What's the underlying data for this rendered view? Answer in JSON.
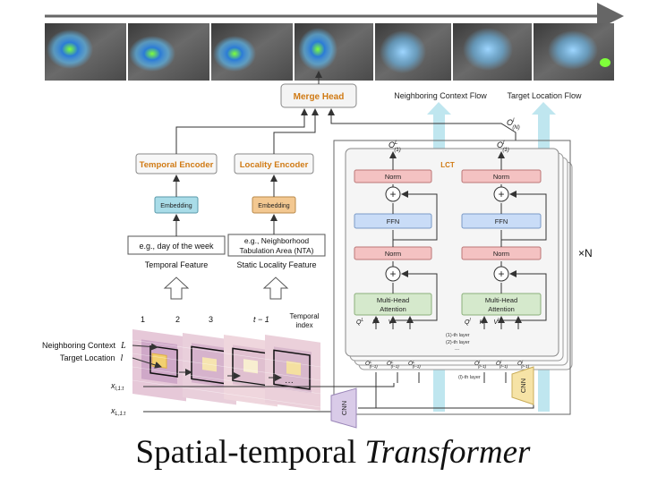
{
  "timeline": {
    "frames": [
      "radar-frame-1",
      "radar-frame-2",
      "radar-frame-3",
      "radar-frame-4",
      "radar-frame-5",
      "radar-frame-6",
      "radar-frame-7"
    ]
  },
  "merge_head": {
    "label": "Merge Head"
  },
  "flows": {
    "neighboring": "Neighboring Context Flow",
    "target": "Target Location Flow"
  },
  "temporal_branch": {
    "encoder": "Temporal Encoder",
    "embedding": "Embedding",
    "feature_example": "e.g., day of the week",
    "feature_label": "Temporal Feature"
  },
  "locality_branch": {
    "encoder": "Locality Encoder",
    "embedding": "Embedding",
    "feature_example_line1": "e.g., Neighborhood",
    "feature_example_line2": "Tabulation Area (NTA)",
    "feature_label": "Static Locality Feature"
  },
  "lct": {
    "label": "LCT",
    "norm": "Norm",
    "ffn": "FFN",
    "mha_line1": "Multi-Head",
    "mha_line2": "Attention",
    "repeat": "×N",
    "out_left": "O",
    "out_left_sup": "L",
    "out_left_sub": "(1)",
    "out_right": "O",
    "out_right_sup": "l",
    "out_right_sub": "(1)",
    "top_out": "O",
    "top_out_sup": "l",
    "top_out_sub": "(N)",
    "q_left": "Q",
    "k_left": "K",
    "v_left": "V",
    "sup_left": "L",
    "q_right": "Q",
    "k_right": "K",
    "v_right": "V",
    "sup_right": "l",
    "layer1": "(1)-th layer",
    "layer2": "(2)-th layer",
    "layer_dots": "...",
    "layer_l": "(l)-th layer",
    "in_o": "O",
    "in_sub": "(l−1)"
  },
  "grid": {
    "indices": [
      "1",
      "2",
      "3",
      "t − 1"
    ],
    "temporal_index_line1": "Temporal",
    "temporal_index_line2": "index",
    "neighboring_label": "Neighboring Context",
    "neighboring_sym": "L",
    "target_label": "Target Location",
    "target_sym": "l",
    "x_l": "x",
    "x_l_sub": "l,1:t",
    "x_L": "x",
    "x_L_sub": "L,1:t",
    "dots": "···"
  },
  "cnn": {
    "left": "CNN",
    "right": "CNN"
  },
  "caption": {
    "regular": "Spatial-temporal ",
    "italic": "Transformer"
  },
  "colors": {
    "timeline_arrow": "#666666",
    "encoder_text": "#d07a14",
    "embedding_blue": "#a9dce8",
    "embedding_orange": "#f3c891",
    "norm": "#f4c2c2",
    "ffn": "#c9dcf7",
    "mha": "#d5e9cc",
    "flow": "#bfe6ef",
    "cnn_left": "#d9cbe8",
    "cnn_right": "#f6e3a6"
  }
}
